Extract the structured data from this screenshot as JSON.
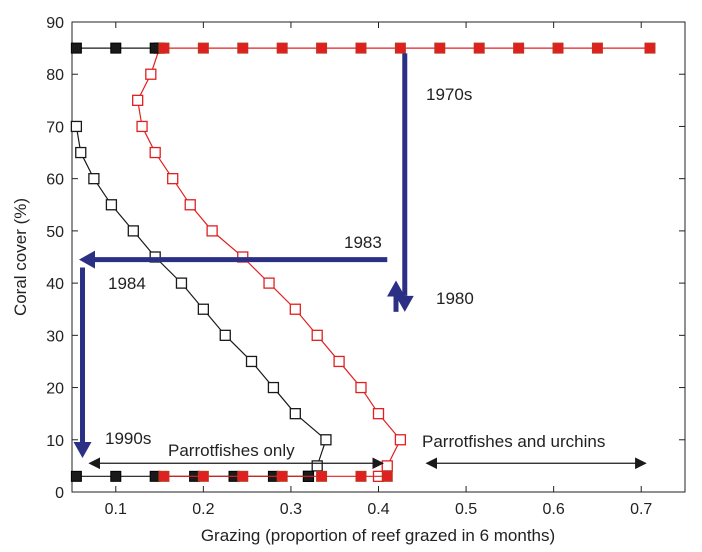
{
  "chart_data": {
    "type": "line",
    "title": "",
    "xlabel": "Grazing (proportion of reef grazed in 6 months)",
    "ylabel": "Coral cover (%)",
    "xlim": [
      0.05,
      0.75
    ],
    "ylim": [
      0,
      90
    ],
    "xticks": [
      "0.1",
      "0.2",
      "0.3",
      "0.4",
      "0.5",
      "0.6",
      "0.7"
    ],
    "yticks": [
      "0",
      "10",
      "20",
      "30",
      "40",
      "50",
      "60",
      "70",
      "80",
      "90"
    ],
    "grid": false,
    "legend": "none",
    "series": [
      {
        "key": "black-upper",
        "color": "#1a1a1a",
        "marker": "square-filled",
        "points": [
          [
            0.055,
            85
          ],
          [
            0.1,
            85
          ],
          [
            0.145,
            85
          ]
        ]
      },
      {
        "key": "red-upper",
        "color": "#e02020",
        "marker": "square-filled",
        "points": [
          [
            0.155,
            85
          ],
          [
            0.2,
            85
          ],
          [
            0.245,
            85
          ],
          [
            0.29,
            85
          ],
          [
            0.335,
            85
          ],
          [
            0.38,
            85
          ],
          [
            0.425,
            85
          ],
          [
            0.47,
            85
          ],
          [
            0.515,
            85
          ],
          [
            0.56,
            85
          ],
          [
            0.605,
            85
          ],
          [
            0.65,
            85
          ],
          [
            0.71,
            85
          ]
        ]
      },
      {
        "key": "black-lower",
        "color": "#1a1a1a",
        "marker": "square-filled",
        "points": [
          [
            0.055,
            3
          ],
          [
            0.1,
            3
          ],
          [
            0.145,
            3
          ],
          [
            0.19,
            3
          ],
          [
            0.235,
            3
          ],
          [
            0.28,
            3
          ],
          [
            0.32,
            3
          ]
        ]
      },
      {
        "key": "red-lower",
        "color": "#e02020",
        "marker": "square-filled",
        "points": [
          [
            0.155,
            3
          ],
          [
            0.2,
            3
          ],
          [
            0.245,
            3
          ],
          [
            0.29,
            3
          ],
          [
            0.335,
            3
          ],
          [
            0.38,
            3
          ],
          [
            0.41,
            3
          ]
        ]
      },
      {
        "key": "black-unstable",
        "color": "#1a1a1a",
        "marker": "square-open",
        "points": [
          [
            0.055,
            70
          ],
          [
            0.06,
            65
          ],
          [
            0.075,
            60
          ],
          [
            0.095,
            55
          ],
          [
            0.12,
            50
          ],
          [
            0.145,
            45
          ],
          [
            0.175,
            40
          ],
          [
            0.2,
            35
          ],
          [
            0.225,
            30
          ],
          [
            0.255,
            25
          ],
          [
            0.28,
            20
          ],
          [
            0.305,
            15
          ],
          [
            0.34,
            10
          ],
          [
            0.33,
            5
          ],
          [
            0.32,
            3
          ]
        ]
      },
      {
        "key": "red-unstable",
        "color": "#e02020",
        "marker": "square-open",
        "points": [
          [
            0.15,
            85
          ],
          [
            0.14,
            80
          ],
          [
            0.125,
            75
          ],
          [
            0.13,
            70
          ],
          [
            0.145,
            65
          ],
          [
            0.165,
            60
          ],
          [
            0.185,
            55
          ],
          [
            0.21,
            50
          ],
          [
            0.245,
            45
          ],
          [
            0.275,
            40
          ],
          [
            0.305,
            35
          ],
          [
            0.33,
            30
          ],
          [
            0.355,
            25
          ],
          [
            0.38,
            20
          ],
          [
            0.4,
            15
          ],
          [
            0.425,
            10
          ],
          [
            0.41,
            5
          ],
          [
            0.4,
            3
          ]
        ]
      }
    ],
    "arrow_color": "#2b3085",
    "annotation_color": "#1a1a1a"
  },
  "annotations": {
    "label_1970s": "1970s",
    "label_1980": "1980",
    "label_1983": "1983",
    "label_1984": "1984",
    "label_1990s": "1990s",
    "parrotfishes_only": "Parrotfishes only",
    "parrotfishes_and_urchins": "Parrotfishes and urchins"
  }
}
